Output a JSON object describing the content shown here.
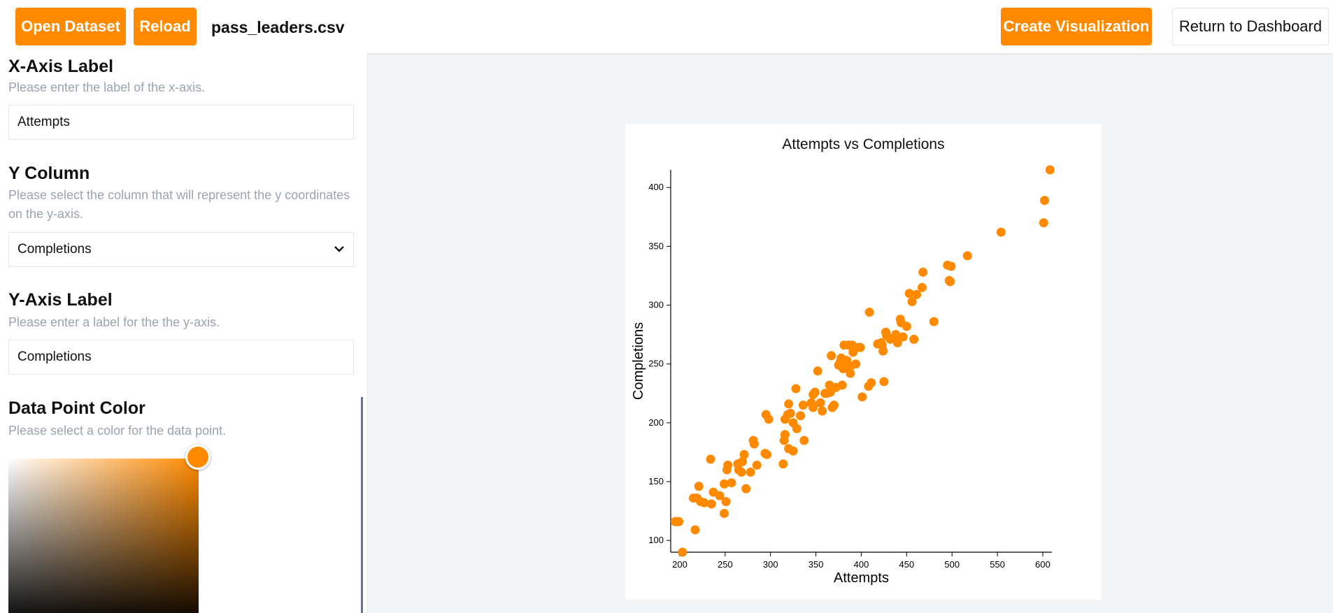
{
  "toolbar": {
    "open_label": "Open Dataset",
    "reload_label": "Reload",
    "filename": "pass_leaders.csv",
    "create_label": "Create Visualization",
    "return_label": "Return to Dashboard"
  },
  "sidebar": {
    "x_label_section": {
      "title": "X-Axis Label",
      "desc": "Please enter the label of the x-axis.",
      "value": "Attempts"
    },
    "y_column_section": {
      "title": "Y Column",
      "desc": "Please select the column that will represent the y coordinates on the y-axis.",
      "value": "Completions"
    },
    "y_label_section": {
      "title": "Y-Axis Label",
      "desc": "Please enter a label for the the y-axis.",
      "value": "Completions"
    },
    "color_section": {
      "title": "Data Point Color",
      "desc": "Please select a color for the data point.",
      "value": "#ff8a00"
    }
  },
  "chart_data": {
    "type": "scatter",
    "title": "Attempts vs Completions",
    "xlabel": "Attempts",
    "ylabel": "Completions",
    "xlim": [
      190,
      610
    ],
    "ylim": [
      90,
      415
    ],
    "xticks": [
      200,
      250,
      300,
      350,
      400,
      450,
      500,
      550,
      600
    ],
    "yticks": [
      100,
      150,
      200,
      250,
      300,
      350,
      400
    ],
    "color": "#ff8a00",
    "points": [
      [
        195,
        116
      ],
      [
        197,
        116
      ],
      [
        199,
        116
      ],
      [
        203,
        90
      ],
      [
        217,
        109
      ],
      [
        215,
        136
      ],
      [
        219,
        136
      ],
      [
        221,
        146
      ],
      [
        223,
        133
      ],
      [
        227,
        132
      ],
      [
        234,
        169
      ],
      [
        235,
        131
      ],
      [
        237,
        141
      ],
      [
        244,
        138
      ],
      [
        249,
        123
      ],
      [
        249,
        148
      ],
      [
        251,
        133
      ],
      [
        252,
        160
      ],
      [
        253,
        164
      ],
      [
        257,
        149
      ],
      [
        264,
        165
      ],
      [
        265,
        160
      ],
      [
        268,
        158
      ],
      [
        269,
        167
      ],
      [
        271,
        173
      ],
      [
        273,
        144
      ],
      [
        278,
        158
      ],
      [
        281,
        185
      ],
      [
        282,
        182
      ],
      [
        285,
        164
      ],
      [
        294,
        174
      ],
      [
        296,
        173
      ],
      [
        295,
        207
      ],
      [
        298,
        203
      ],
      [
        314,
        165
      ],
      [
        315,
        185
      ],
      [
        316,
        190
      ],
      [
        316,
        203
      ],
      [
        319,
        207
      ],
      [
        320,
        178
      ],
      [
        320,
        216
      ],
      [
        322,
        208
      ],
      [
        325,
        176
      ],
      [
        325,
        200
      ],
      [
        328,
        229
      ],
      [
        329,
        195
      ],
      [
        333,
        206
      ],
      [
        336,
        215
      ],
      [
        337,
        185
      ],
      [
        345,
        217
      ],
      [
        347,
        213
      ],
      [
        347,
        224
      ],
      [
        349,
        226
      ],
      [
        352,
        244
      ],
      [
        355,
        217
      ],
      [
        357,
        210
      ],
      [
        360,
        225
      ],
      [
        362,
        225
      ],
      [
        365,
        232
      ],
      [
        366,
        226
      ],
      [
        367,
        257
      ],
      [
        368,
        213
      ],
      [
        370,
        215
      ],
      [
        372,
        230
      ],
      [
        375,
        249
      ],
      [
        377,
        252
      ],
      [
        378,
        255
      ],
      [
        379,
        232
      ],
      [
        380,
        246
      ],
      [
        381,
        266
      ],
      [
        384,
        253
      ],
      [
        386,
        266
      ],
      [
        388,
        242
      ],
      [
        388,
        248
      ],
      [
        390,
        266
      ],
      [
        391,
        260
      ],
      [
        394,
        250
      ],
      [
        397,
        264
      ],
      [
        399,
        264
      ],
      [
        401,
        222
      ],
      [
        408,
        231
      ],
      [
        409,
        294
      ],
      [
        411,
        234
      ],
      [
        418,
        267
      ],
      [
        422,
        268
      ],
      [
        423,
        266
      ],
      [
        424,
        261
      ],
      [
        425,
        235
      ],
      [
        427,
        277
      ],
      [
        428,
        274
      ],
      [
        432,
        271
      ],
      [
        438,
        275
      ],
      [
        440,
        268
      ],
      [
        443,
        288
      ],
      [
        444,
        285
      ],
      [
        446,
        273
      ],
      [
        450,
        282
      ],
      [
        453,
        310
      ],
      [
        456,
        303
      ],
      [
        458,
        271
      ],
      [
        461,
        309
      ],
      [
        467,
        315
      ],
      [
        468,
        328
      ],
      [
        480,
        286
      ],
      [
        495,
        334
      ],
      [
        497,
        321
      ],
      [
        498,
        320
      ],
      [
        499,
        333
      ],
      [
        517,
        342
      ],
      [
        554,
        362
      ],
      [
        601,
        370
      ],
      [
        602,
        389
      ],
      [
        608,
        415
      ]
    ]
  }
}
